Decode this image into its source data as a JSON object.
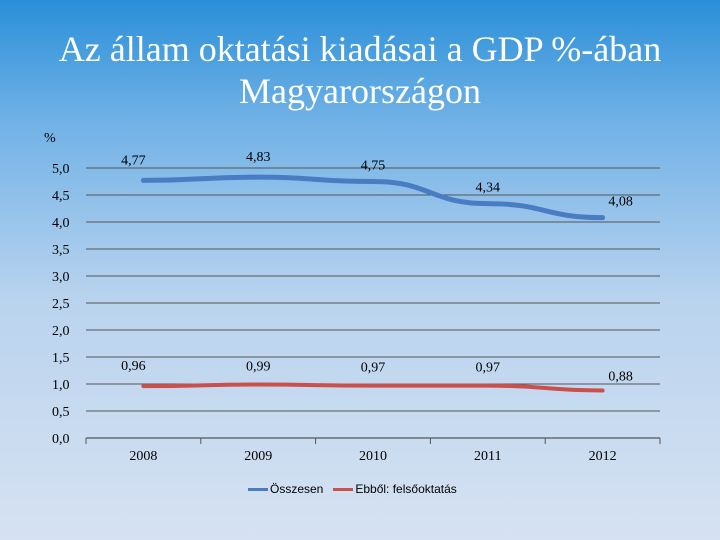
{
  "title_line1": "Az állam oktatási kiadásai a GDP %-ában",
  "title_line2": "Magyarországon",
  "colors": {
    "total": "#4a7cc4",
    "higher": "#c9504b",
    "axis": "#555555"
  },
  "chart_data": {
    "type": "line",
    "ylabel": "%",
    "ylim": [
      0,
      5
    ],
    "yticks": [
      "0,0",
      "0,5",
      "1,0",
      "1,5",
      "2,0",
      "2,5",
      "3,0",
      "3,5",
      "4,0",
      "4,5",
      "5,0"
    ],
    "categories": [
      "2008",
      "2009",
      "2010",
      "2011",
      "2012"
    ],
    "grid": true,
    "legend": "bottom",
    "series": [
      {
        "name": "Összesen",
        "values": [
          4.77,
          4.83,
          4.75,
          4.34,
          4.08
        ],
        "labels": [
          "4,77",
          "4,83",
          "4,75",
          "4,34",
          "4,08"
        ]
      },
      {
        "name": "Ebből: felsőoktatás",
        "values": [
          0.96,
          0.99,
          0.97,
          0.97,
          0.88
        ],
        "labels": [
          "0,96",
          "0,99",
          "0,97",
          "0,97",
          "0,88"
        ]
      }
    ]
  }
}
